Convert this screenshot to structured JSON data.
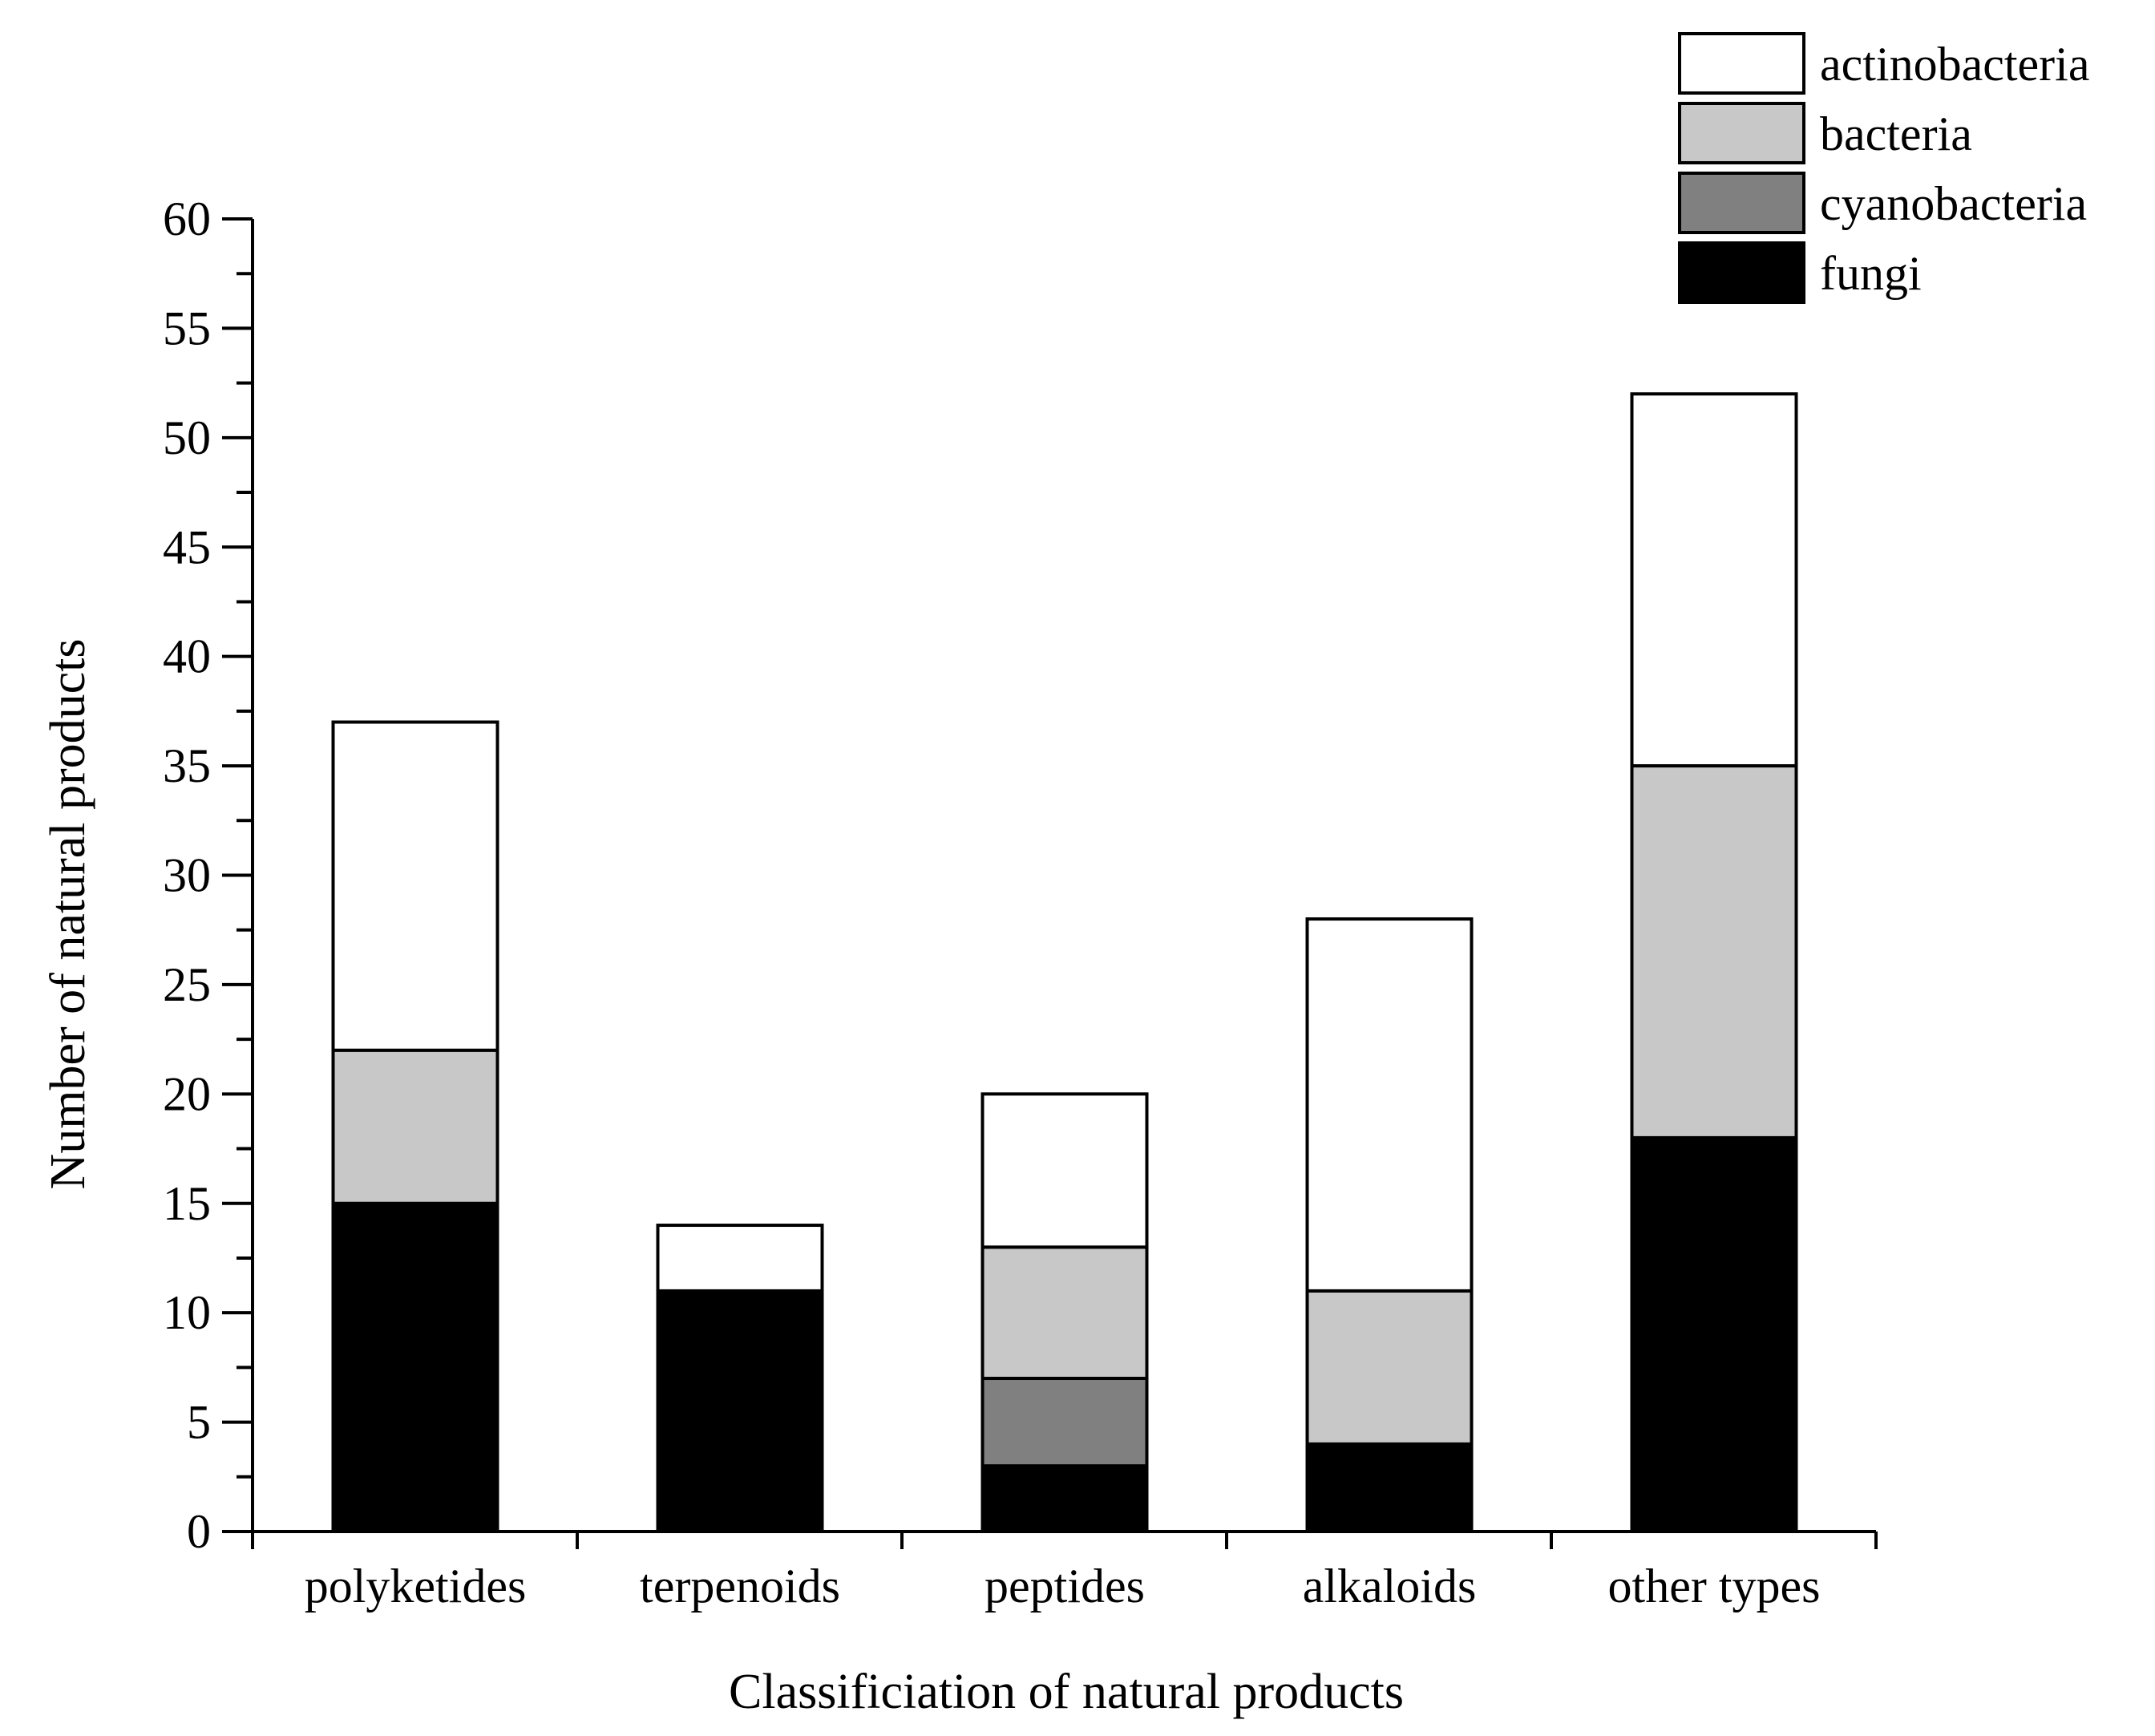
{
  "chart_data": {
    "type": "bar",
    "stacked": true,
    "title": "",
    "xlabel": "Classificiation of natural products",
    "ylabel": "Number of natural products",
    "ylim": [
      0,
      60
    ],
    "yticks": [
      0,
      5,
      10,
      15,
      20,
      25,
      30,
      35,
      40,
      45,
      50,
      55,
      60
    ],
    "categories": [
      "polyketides",
      "terpenoids",
      "peptides",
      "alkaloids",
      "other types"
    ],
    "series": [
      {
        "name": "fungi",
        "color": "#000000",
        "values": [
          15,
          11,
          3,
          4,
          18
        ]
      },
      {
        "name": "cyanobacteria",
        "color": "#808080",
        "values": [
          0,
          0,
          4,
          0,
          0
        ]
      },
      {
        "name": "bacteria",
        "color": "#c8c8c8",
        "values": [
          7,
          0,
          6,
          7,
          17
        ]
      },
      {
        "name": "actinobacteria",
        "color": "#ffffff",
        "values": [
          15,
          3,
          7,
          17,
          17
        ]
      }
    ],
    "legend": {
      "position": "top-right",
      "order": [
        "actinobacteria",
        "bacteria",
        "cyanobacteria",
        "fungi"
      ]
    },
    "grid": false
  }
}
